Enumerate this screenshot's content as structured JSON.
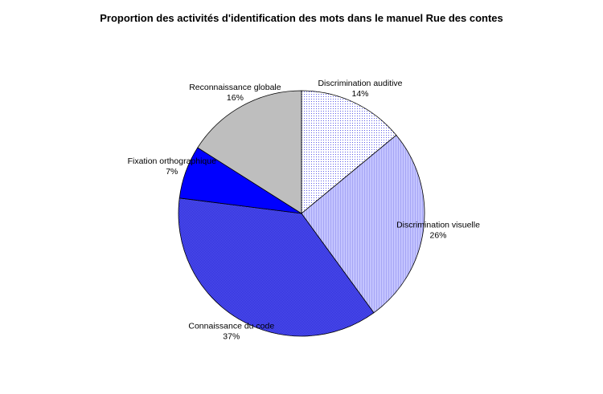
{
  "chart_data": {
    "type": "pie",
    "title": "Proportion des activités d'identification des mots dans le manuel Rue des contes",
    "start_angle_deg": 90,
    "direction": "clockwise",
    "slices": [
      {
        "label": "Discrimination auditive",
        "pct_label": "14%",
        "value": 14,
        "color": "#ffffff",
        "pattern": "dots-blue"
      },
      {
        "label": "Discrimination visuelle",
        "pct_label": "26%",
        "value": 26,
        "color": "#bbbbff",
        "pattern": "vlines-light"
      },
      {
        "label": "Connaissance du code",
        "pct_label": "37%",
        "value": 37,
        "color": "#4b4bf0",
        "pattern": "crosshatch-blue"
      },
      {
        "label": "Fixation orthographique",
        "pct_label": "7%",
        "value": 7,
        "color": "#0000ff",
        "pattern": "solid"
      },
      {
        "label": "Reconnaissance globale",
        "pct_label": "16%",
        "value": 16,
        "color": "#bebebe",
        "pattern": "solid"
      }
    ]
  }
}
